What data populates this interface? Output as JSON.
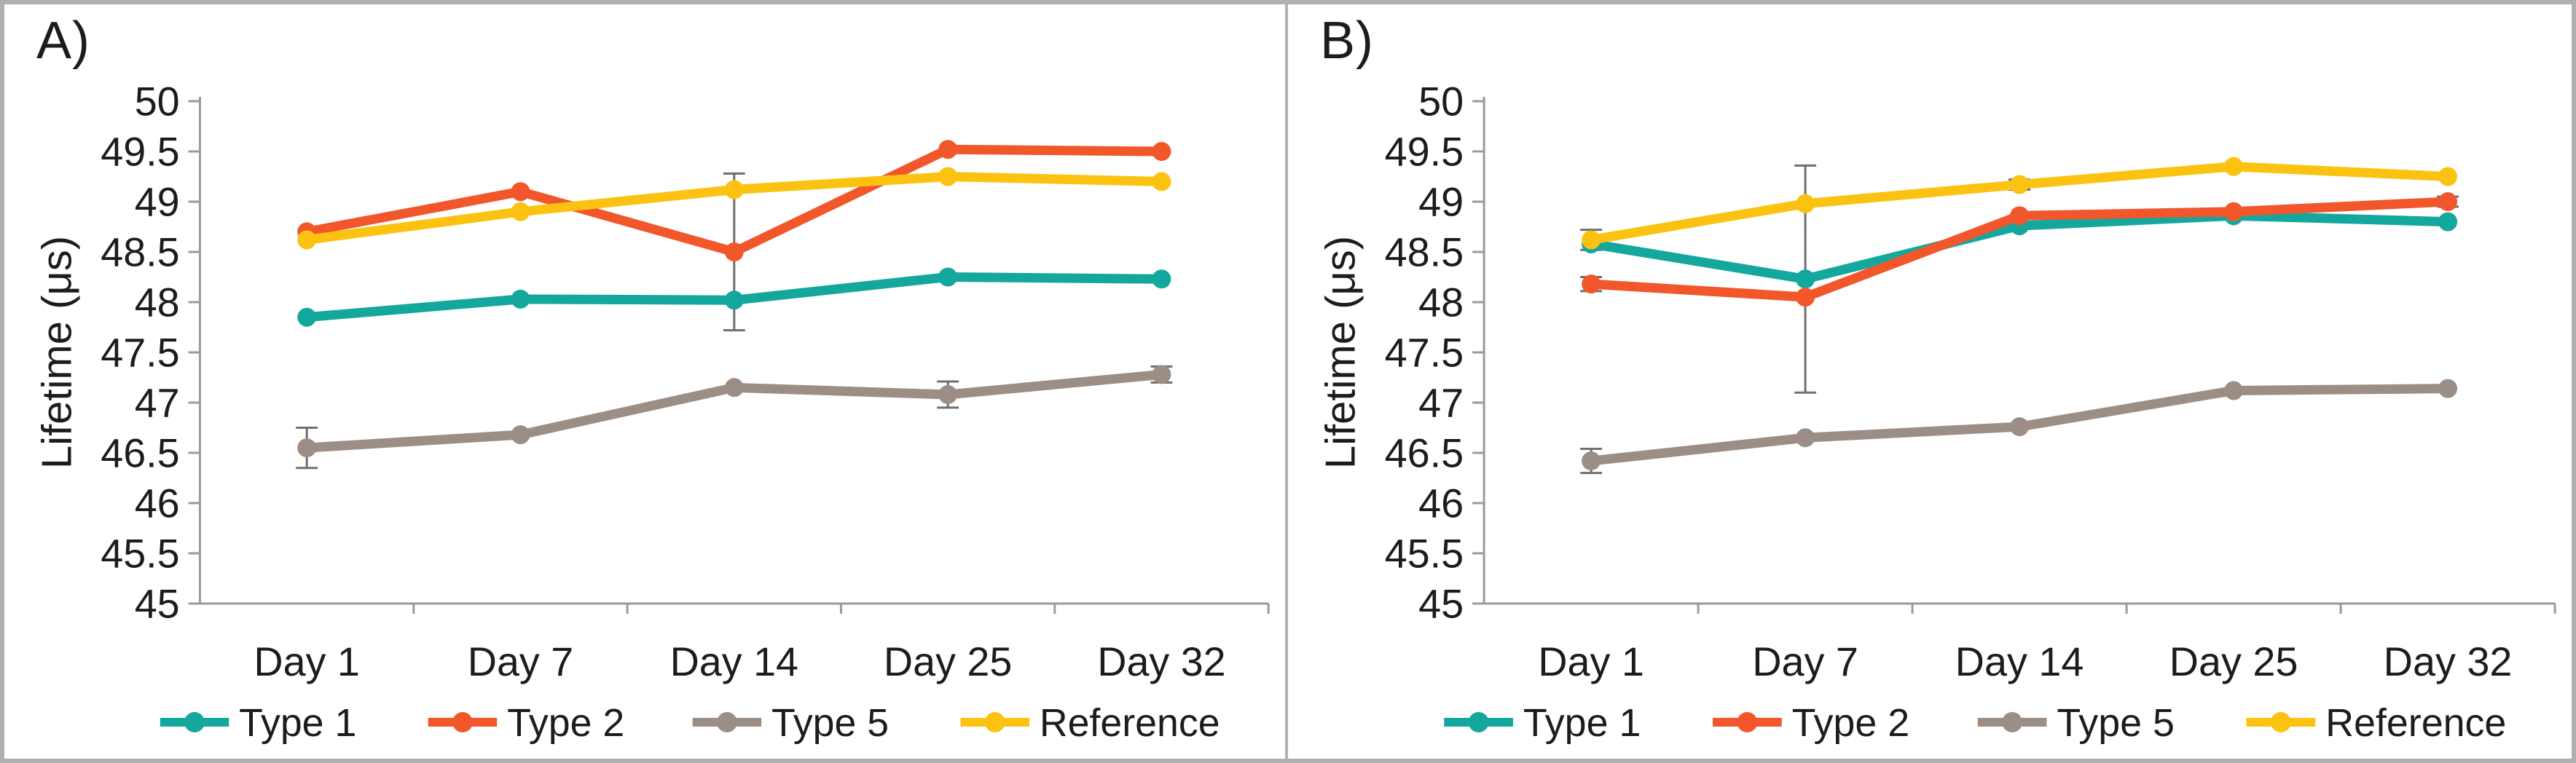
{
  "figure": {
    "border_color": "#b0b0b0",
    "axis_color": "#9a9a9a",
    "text_color": "#1c1c1c",
    "error_bar_color": "#6f6f6f",
    "background": "#ffffff"
  },
  "chart_data": [
    {
      "type": "line",
      "panel_label": "A)",
      "ylabel": "Lifetime (μs)",
      "xlabel": "",
      "ylim": [
        45,
        50
      ],
      "ytick_step": 0.5,
      "ytick_labels": [
        "50",
        "49.5",
        "49",
        "48.5",
        "48",
        "47.5",
        "47",
        "46.5",
        "46",
        "45.5",
        "45"
      ],
      "categories": [
        "Day 1",
        "Day 7",
        "Day 14",
        "Day 25",
        "Day 32"
      ],
      "grid": false,
      "legend_position": "bottom",
      "marker": "circle",
      "series": [
        {
          "name": "Type 1",
          "color": "#14a79d",
          "values": [
            47.85,
            48.03,
            48.02,
            48.25,
            48.23
          ],
          "errors": [
            0,
            0,
            0,
            0,
            0
          ]
        },
        {
          "name": "Type 2",
          "color": "#f1572b",
          "values": [
            48.7,
            49.1,
            48.5,
            49.52,
            49.5
          ],
          "errors": [
            0,
            0,
            0.78,
            0,
            0
          ]
        },
        {
          "name": "Type 5",
          "color": "#9c8e85",
          "values": [
            46.55,
            46.68,
            47.15,
            47.08,
            47.28
          ],
          "errors": [
            0.2,
            0,
            0,
            0.13,
            0.08
          ]
        },
        {
          "name": "Reference",
          "color": "#fcc211",
          "values": [
            48.62,
            48.9,
            49.12,
            49.25,
            49.2
          ],
          "errors": [
            0,
            0,
            0,
            0,
            0
          ]
        }
      ]
    },
    {
      "type": "line",
      "panel_label": "B)",
      "ylabel": "Lifetime (μs)",
      "xlabel": "",
      "ylim": [
        45,
        50
      ],
      "ytick_step": 0.5,
      "ytick_labels": [
        "50",
        "49.5",
        "49",
        "48.5",
        "48",
        "47.5",
        "47",
        "46.5",
        "46",
        "45.5",
        "45"
      ],
      "categories": [
        "Day 1",
        "Day 7",
        "Day 14",
        "Day 25",
        "Day 32"
      ],
      "grid": false,
      "legend_position": "bottom",
      "marker": "circle",
      "series": [
        {
          "name": "Type 1",
          "color": "#14a79d",
          "values": [
            48.58,
            48.23,
            48.76,
            48.86,
            48.8
          ],
          "errors": [
            0,
            1.13,
            0,
            0,
            0
          ]
        },
        {
          "name": "Type 2",
          "color": "#f1572b",
          "values": [
            48.18,
            48.05,
            48.86,
            48.9,
            49.0
          ],
          "errors": [
            0.07,
            0,
            0,
            0,
            0.05
          ]
        },
        {
          "name": "Type 5",
          "color": "#9c8e85",
          "values": [
            46.42,
            46.65,
            46.76,
            47.12,
            47.14
          ],
          "errors": [
            0.12,
            0,
            0,
            0,
            0
          ]
        },
        {
          "name": "Reference",
          "color": "#fcc211",
          "values": [
            48.62,
            48.98,
            49.17,
            49.35,
            49.25
          ],
          "errors": [
            0.1,
            0,
            0.05,
            0,
            0
          ]
        }
      ]
    }
  ]
}
